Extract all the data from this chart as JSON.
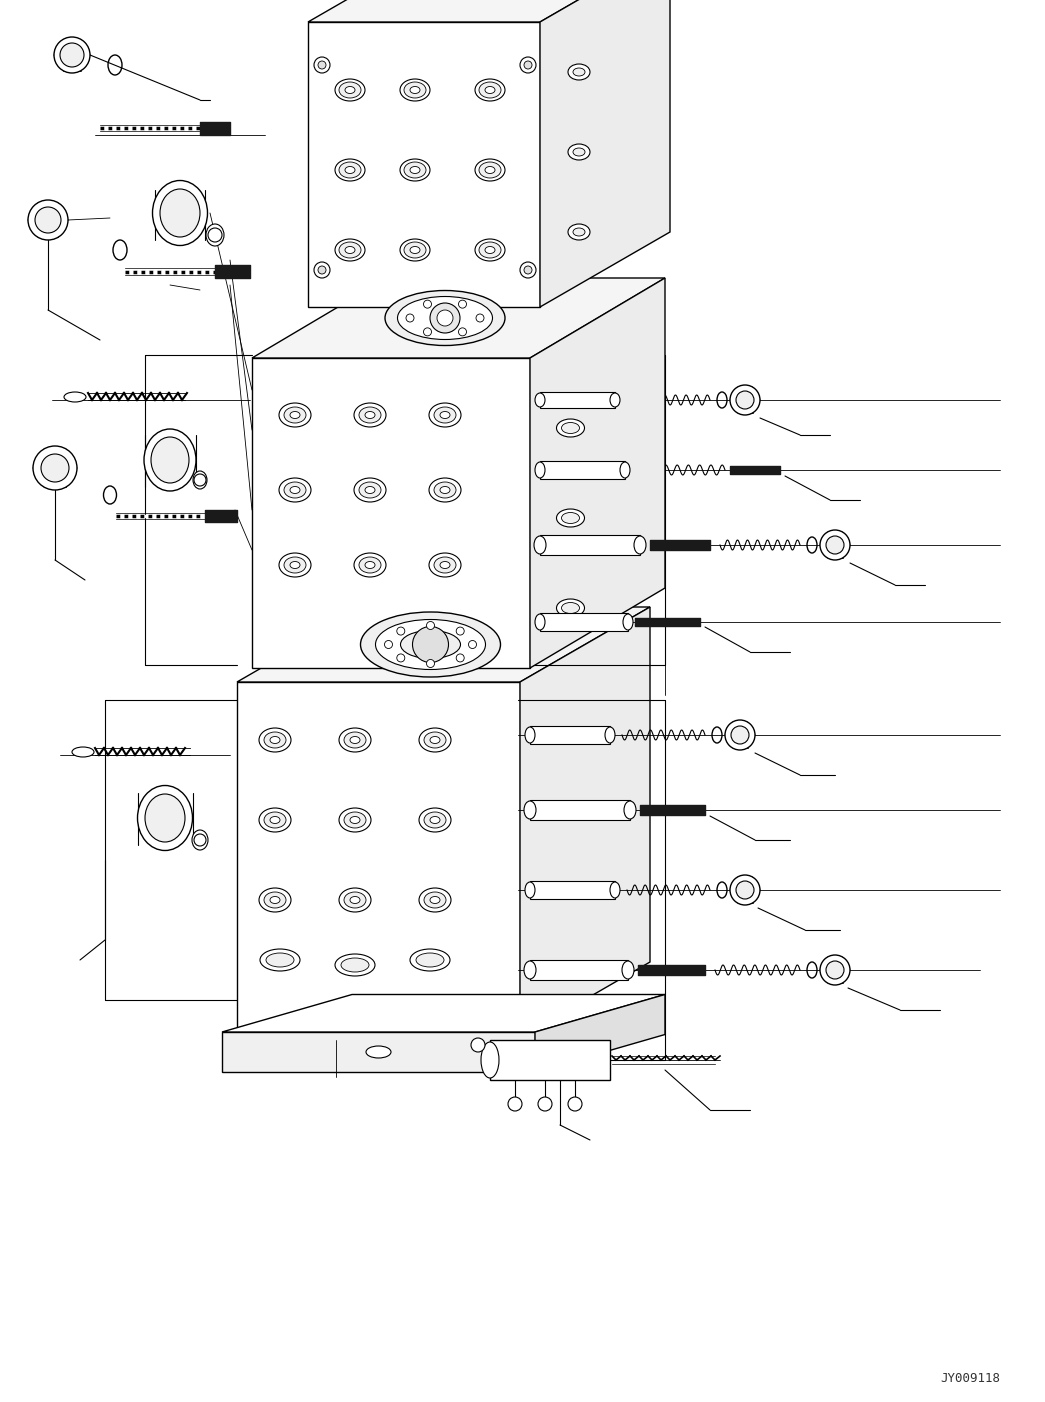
{
  "bg_color": "#ffffff",
  "line_color": "#000000",
  "fig_width": 10.45,
  "fig_height": 14.02,
  "dpi": 100,
  "watermark": "JY009118"
}
